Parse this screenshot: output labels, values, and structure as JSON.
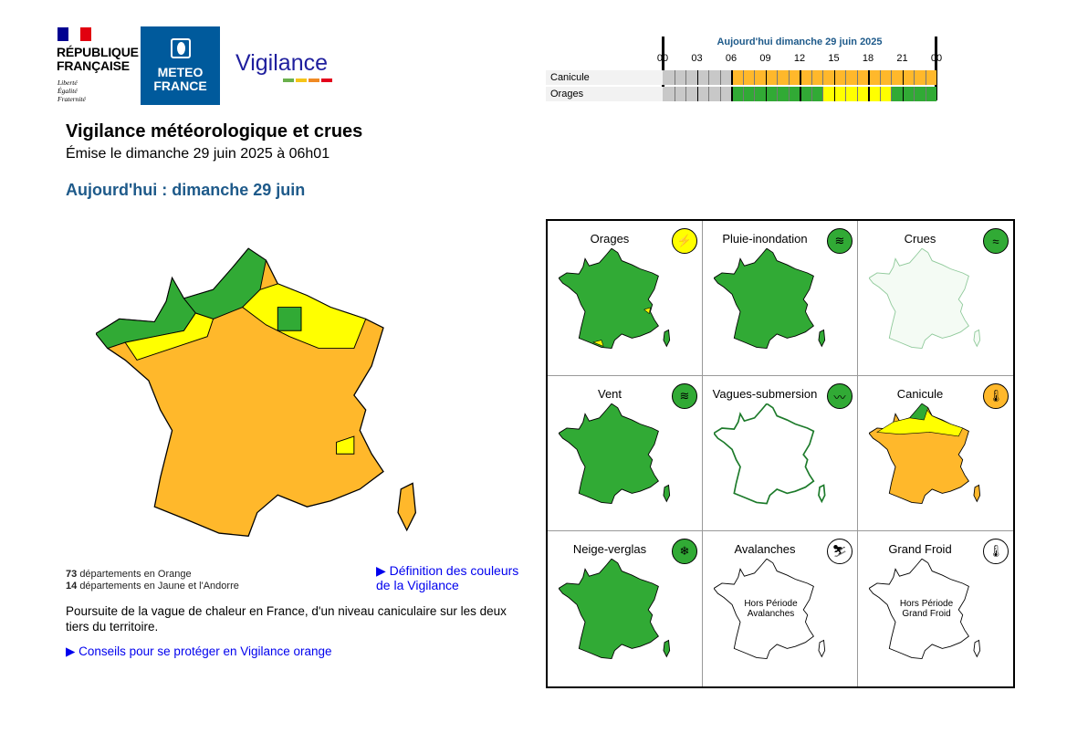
{
  "header": {
    "rf_name": [
      "RÉPUBLIQUE",
      "FRANÇAISE"
    ],
    "rf_motto": [
      "Liberté",
      "Égalité",
      "Fraternité"
    ],
    "mf_name": [
      "METEO",
      "FRANCE"
    ],
    "vigilance_logo": "Vigilance",
    "title": "Vigilance météorologique et crues",
    "issued": "Émise le dimanche 29 juin 2025 à 06h01",
    "day": "Aujourd'hui : dimanche 29 juin"
  },
  "colors": {
    "green": "#31aa35",
    "yellow": "#ffff00",
    "orange": "#ffb82b",
    "red": "#e40000",
    "grey": "#c8c8c8",
    "title_blue": "#1e5a8a"
  },
  "timeline": {
    "title": "Aujourd'hui dimanche 29 juin 2025",
    "hours": [
      "00",
      "03",
      "06",
      "09",
      "12",
      "15",
      "18",
      "21",
      "00"
    ],
    "rows": [
      {
        "label": "Canicule",
        "segments": [
          {
            "from": 0,
            "to": 6,
            "level": "grey"
          },
          {
            "from": 6,
            "to": 24,
            "level": "orange"
          }
        ]
      },
      {
        "label": "Orages",
        "segments": [
          {
            "from": 0,
            "to": 6,
            "level": "grey"
          },
          {
            "from": 6,
            "to": 14,
            "level": "green"
          },
          {
            "from": 14,
            "to": 20,
            "level": "yellow"
          },
          {
            "from": 20,
            "to": 24,
            "level": "green"
          }
        ]
      }
    ]
  },
  "summary": {
    "orange_count": "73",
    "orange_text": "départements en Orange",
    "yellow_count": "14",
    "yellow_text": "départements en Jaune et l'Andorre",
    "definition_link": "▶ Définition des couleurs",
    "definition_link2": "de la Vigilance",
    "description": "Poursuite de la vague de chaleur en France, d'un niveau caniculaire sur les deux tiers du territoire.",
    "advice_link": "▶ Conseils pour se protéger en Vigilance orange"
  },
  "panels": [
    {
      "title": "Orages",
      "icon": "lightning-icon",
      "glyph": "⚡",
      "level": "yellow"
    },
    {
      "title": "Pluie-inondation",
      "icon": "rain-flood-icon",
      "glyph": "≋",
      "level": "green"
    },
    {
      "title": "Crues",
      "icon": "flood-wave-icon",
      "glyph": "≈",
      "level": "green"
    },
    {
      "title": "Vent",
      "icon": "wind-icon",
      "glyph": "≋",
      "level": "green"
    },
    {
      "title": "Vagues-submersion",
      "icon": "wave-icon",
      "glyph": "〰",
      "level": "green"
    },
    {
      "title": "Canicule",
      "icon": "thermometer-icon",
      "glyph": "🌡",
      "level": "orange"
    },
    {
      "title": "Neige-verglas",
      "icon": "snow-icon",
      "glyph": "❄",
      "level": "green"
    },
    {
      "title": "Avalanches",
      "icon": "avalanche-icon",
      "glyph": "⛷",
      "level": "none",
      "off": [
        "Hors Période",
        "Avalanches"
      ]
    },
    {
      "title": "Grand Froid",
      "icon": "cold-thermometer-icon",
      "glyph": "🌡",
      "level": "none",
      "off": [
        "Hors Période",
        "Grand Froid"
      ]
    }
  ]
}
